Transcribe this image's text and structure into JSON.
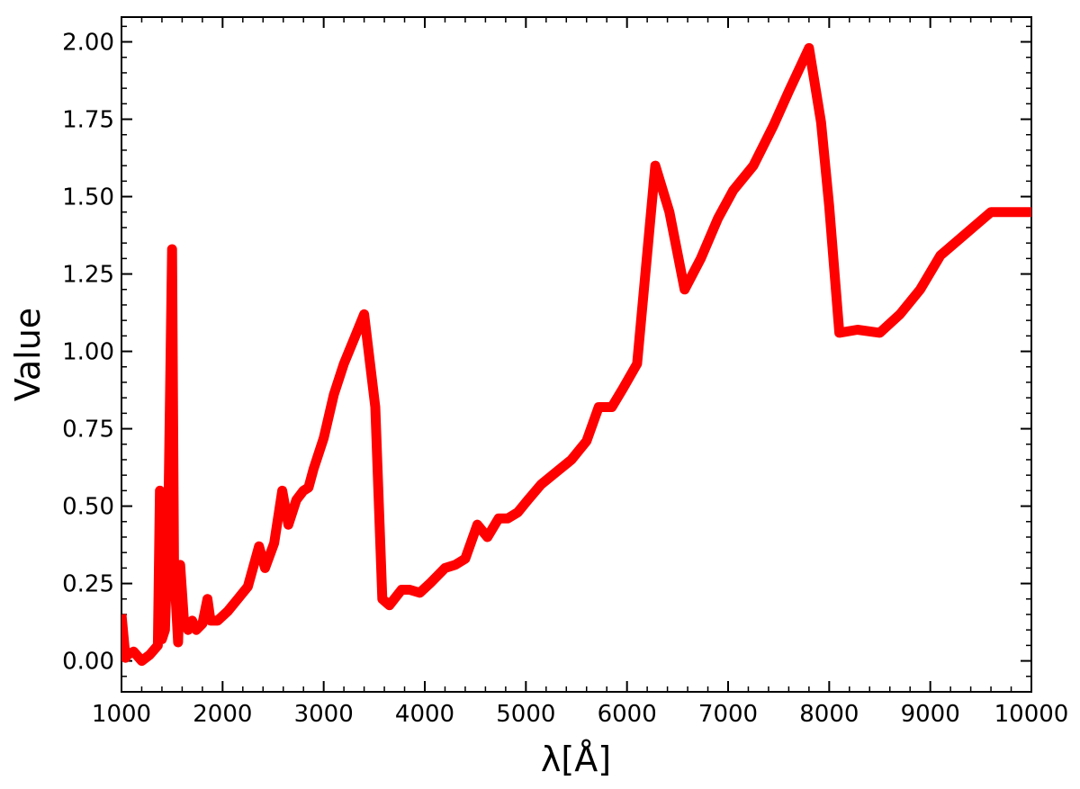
{
  "chart_data": {
    "type": "line",
    "title": "",
    "xlabel": "λ[Å]",
    "ylabel": "Value",
    "xlim": [
      1000,
      10000
    ],
    "ylim": [
      -0.1,
      2.08
    ],
    "grid": false,
    "x_ticks": [
      1000,
      2000,
      3000,
      4000,
      5000,
      6000,
      7000,
      8000,
      9000,
      10000
    ],
    "x_tick_labels": [
      "1000",
      "2000",
      "3000",
      "4000",
      "5000",
      "6000",
      "7000",
      "8000",
      "9000",
      "10000"
    ],
    "y_ticks": [
      0,
      0.25,
      0.5,
      0.75,
      1.0,
      1.25,
      1.5,
      1.75,
      2.0
    ],
    "y_tick_labels": [
      "0.00",
      "0.25",
      "0.50",
      "0.75",
      "1.00",
      "1.25",
      "1.50",
      "1.75",
      "2.00"
    ],
    "series": [
      {
        "color": "#ff0000",
        "x": [
          1000,
          1040,
          1060,
          1120,
          1200,
          1280,
          1360,
          1380,
          1400,
          1430,
          1460,
          1500,
          1520,
          1560,
          1580,
          1620,
          1660,
          1700,
          1740,
          1800,
          1850,
          1880,
          1950,
          2050,
          2150,
          2250,
          2360,
          2420,
          2510,
          2590,
          2650,
          2730,
          2800,
          2850,
          2900,
          3000,
          3100,
          3200,
          3300,
          3400,
          3510,
          3580,
          3650,
          3770,
          3850,
          3950,
          4050,
          4200,
          4300,
          4400,
          4520,
          4620,
          4730,
          4820,
          4920,
          5020,
          5150,
          5300,
          5450,
          5600,
          5720,
          5850,
          5960,
          6100,
          6280,
          6420,
          6570,
          6730,
          6900,
          7050,
          7250,
          7450,
          7600,
          7800,
          7920,
          8000,
          8100,
          8280,
          8500,
          8700,
          8900,
          9100,
          9350,
          9600,
          9850,
          10000
        ],
        "y": [
          0.15,
          0.01,
          0.02,
          0.03,
          0.0,
          0.02,
          0.05,
          0.55,
          0.07,
          0.1,
          0.4,
          1.33,
          0.3,
          0.06,
          0.31,
          0.12,
          0.1,
          0.13,
          0.1,
          0.12,
          0.2,
          0.13,
          0.13,
          0.16,
          0.2,
          0.24,
          0.37,
          0.3,
          0.38,
          0.55,
          0.44,
          0.52,
          0.55,
          0.56,
          0.62,
          0.72,
          0.86,
          0.96,
          1.04,
          1.12,
          0.82,
          0.2,
          0.18,
          0.23,
          0.23,
          0.22,
          0.25,
          0.3,
          0.31,
          0.33,
          0.44,
          0.4,
          0.46,
          0.46,
          0.48,
          0.52,
          0.57,
          0.61,
          0.65,
          0.71,
          0.82,
          0.82,
          0.88,
          0.96,
          1.6,
          1.45,
          1.2,
          1.3,
          1.43,
          1.52,
          1.6,
          1.73,
          1.84,
          1.98,
          1.74,
          1.47,
          1.06,
          1.07,
          1.06,
          1.12,
          1.2,
          1.31,
          1.38,
          1.45,
          1.45,
          1.45
        ]
      }
    ]
  }
}
